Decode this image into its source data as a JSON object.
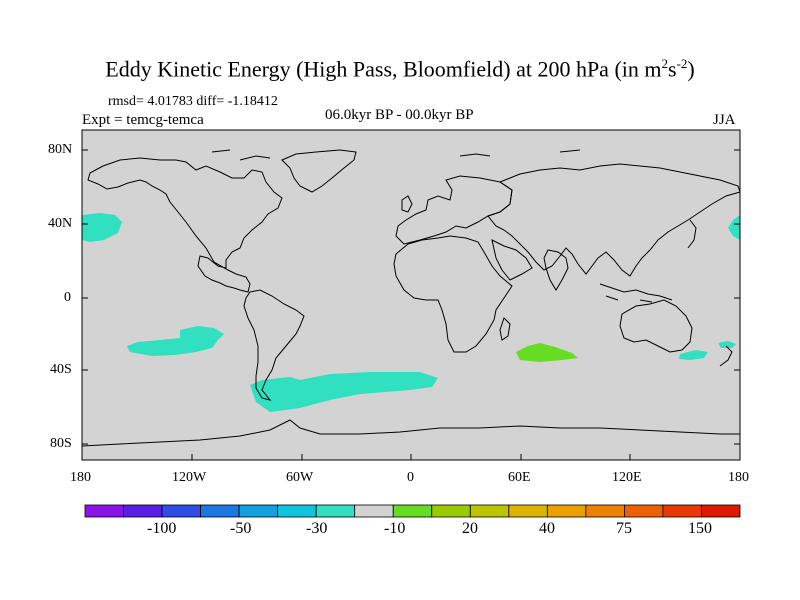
{
  "title": {
    "main": "Eddy Kinetic Energy (High Pass, Bloomfield) at 200 hPa (in m",
    "unit_sup1": "2",
    "unit_s": "s",
    "unit_sup2": "-2",
    "close": ")"
  },
  "stats": "rmsd= 4.01783 diff= -1.18412",
  "expt": "Expt = temcg-temca",
  "period": "06.0kyr BP - 00.0kyr BP",
  "season": "JJA",
  "colors": {
    "ocean_land_neutral": "#d3d3d3",
    "light_negative": "#30e0c0",
    "light_positive": "#66dd22"
  },
  "lat_labels": [
    "80N",
    "40N",
    "0",
    "40S",
    "80S"
  ],
  "lon_labels": [
    "180",
    "120W",
    "60W",
    "0",
    "60E",
    "120E",
    "180"
  ],
  "colorbar": {
    "colors": [
      "#8a14e6",
      "#5a1ee6",
      "#2c4ee6",
      "#1c78e0",
      "#12a0e0",
      "#10c4e0",
      "#30e0c0",
      "#d3d3d3",
      "#66dd22",
      "#99cc00",
      "#bcc400",
      "#dcb400",
      "#eca000",
      "#ec8200",
      "#ec6000",
      "#e83a00",
      "#e01800"
    ],
    "labels": [
      "-100",
      "-50",
      "-30",
      "-10",
      "20",
      "40",
      "75",
      "150"
    ]
  }
}
